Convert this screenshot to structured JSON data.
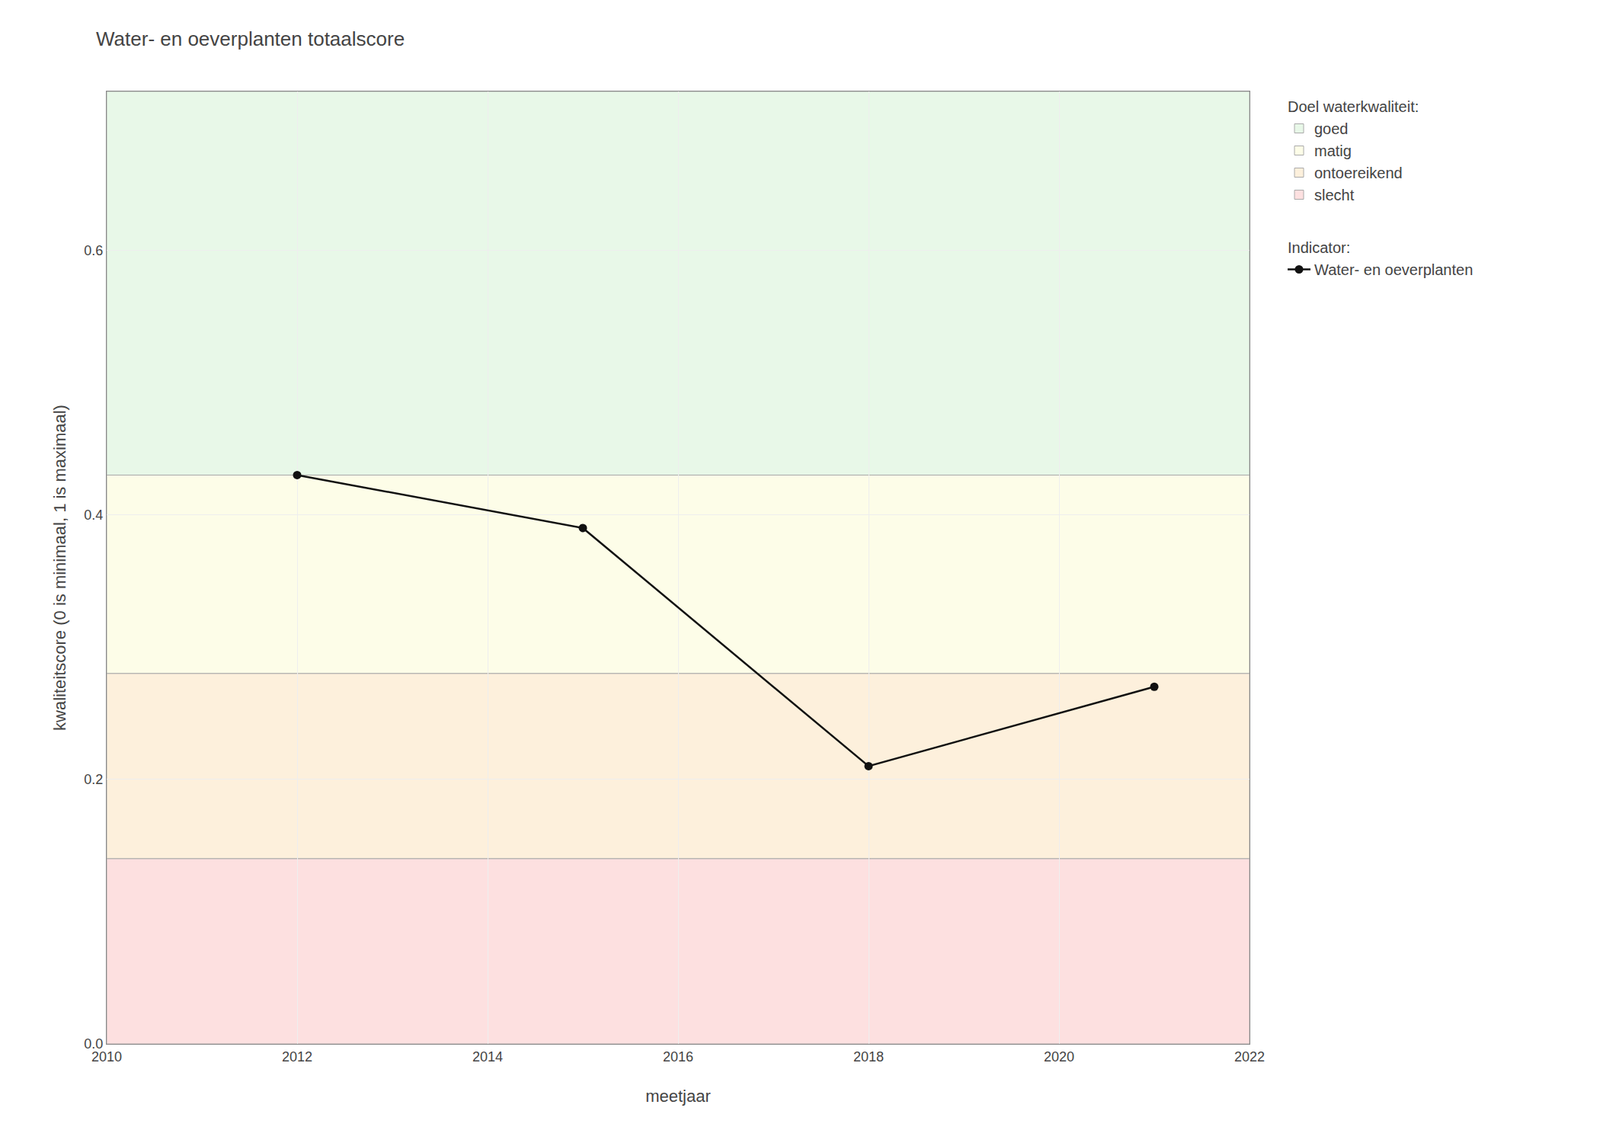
{
  "chart_data": {
    "type": "line",
    "title": "Water- en oeverplanten totaalscore",
    "x_label": "meetjaar",
    "y_label": "kwaliteitscore (0 is minimaal, 1 is maximaal)",
    "x": [
      2012,
      2015,
      2018,
      2021
    ],
    "series": [
      {
        "name": "Water- en oeverplanten",
        "legend_title": "Indicator:",
        "color": "#111111",
        "marker": "circle",
        "line_style": "solid",
        "values": [
          0.43,
          0.39,
          0.21,
          0.27
        ]
      }
    ],
    "zones": {
      "title": "Doel waterkwaliteit:",
      "bands": [
        {
          "name": "goed",
          "min": 0.43,
          "max": 0.72,
          "color": "#e8f8e8"
        },
        {
          "name": "matig",
          "min": 0.28,
          "max": 0.43,
          "color": "#fdfde8"
        },
        {
          "name": "ontoereikend",
          "min": 0.14,
          "max": 0.28,
          "color": "#fdf0dc"
        },
        {
          "name": "slecht",
          "min": 0.0,
          "max": 0.14,
          "color": "#fde0e0"
        }
      ]
    },
    "xlim": [
      2010,
      2022
    ],
    "ylim": [
      0.0,
      0.72
    ],
    "xticks": [
      2010,
      2012,
      2014,
      2016,
      2018,
      2020,
      2022
    ],
    "yticks": [
      {
        "value": 0.0,
        "label": "0.0"
      },
      0.2,
      0.4,
      0.6
    ],
    "grid": true,
    "legend": "right"
  }
}
